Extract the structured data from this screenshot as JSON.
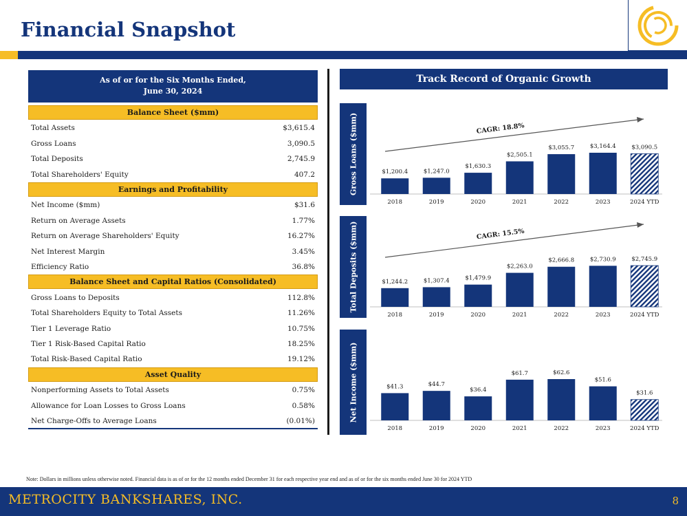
{
  "page": {
    "title": "Financial Snapshot",
    "note": "Note: Dollars in millions unless otherwise noted. Financial data is as of or for the 12 months ended December 31 for each respective year end and as of or for the six months ended June 30 for 2024 YTD",
    "company": "METROCITY BANKSHARES, INC.",
    "page_number": "8"
  },
  "colors": {
    "navy": "#14357a",
    "gold": "#f6bd25"
  },
  "table": {
    "header_line1": "As of or for the Six Months Ended,",
    "header_line2": "June 30, 2024",
    "sections": [
      {
        "title": "Balance Sheet ($mm)",
        "rows": [
          {
            "label": "Total Assets",
            "value": "$3,615.4"
          },
          {
            "label": "Gross Loans",
            "value": "3,090.5"
          },
          {
            "label": "Total Deposits",
            "value": "2,745.9"
          },
          {
            "label": "Total Shareholders' Equity",
            "value": "407.2"
          }
        ]
      },
      {
        "title": "Earnings and Profitability",
        "rows": [
          {
            "label": "Net Income ($mm)",
            "value": "$31.6"
          },
          {
            "label": "Return on Average Assets",
            "value": "1.77%"
          },
          {
            "label": "Return on Average Shareholders' Equity",
            "value": "16.27%"
          },
          {
            "label": "Net Interest Margin",
            "value": "3.45%"
          },
          {
            "label": "Efficiency Ratio",
            "value": "36.8%"
          }
        ]
      },
      {
        "title": "Balance Sheet and Capital Ratios (Consolidated)",
        "rows": [
          {
            "label": "Gross Loans to Deposits",
            "value": "112.8%"
          },
          {
            "label": "Total Shareholders Equity to Total Assets",
            "value": "11.26%"
          },
          {
            "label": "Tier 1 Leverage Ratio",
            "value": "10.75%"
          },
          {
            "label": "Tier 1 Risk-Based Capital Ratio",
            "value": "18.25%"
          },
          {
            "label": "Total Risk-Based Capital Ratio",
            "value": "19.12%"
          }
        ]
      },
      {
        "title": "Asset Quality",
        "rows": [
          {
            "label": "Nonperforming Assets to Total Assets",
            "value": "0.75%"
          },
          {
            "label": "Allowance for Loan Losses to Gross Loans",
            "value": "0.58%"
          },
          {
            "label": "Net Charge-Offs to Average Loans",
            "value": "(0.01%)"
          }
        ]
      }
    ]
  },
  "charts_header": "Track Record of Organic Growth",
  "chart_data": [
    {
      "type": "bar",
      "ylabel": "Gross Loans ($mm)",
      "categories": [
        "2018",
        "2019",
        "2020",
        "2021",
        "2022",
        "2023",
        "2024 YTD"
      ],
      "values": [
        1200.4,
        1247.0,
        1630.3,
        2505.1,
        3055.7,
        3164.4,
        3090.5
      ],
      "data_labels": [
        "$1,200.4",
        "$1,247.0",
        "$1,630.3",
        "$2,505.1",
        "$3,055.7",
        "$3,164.4",
        "$3,090.5"
      ],
      "annotation": "CAGR: 18.8%",
      "hatched_last": true
    },
    {
      "type": "bar",
      "ylabel": "Total Deposits ($mm)",
      "categories": [
        "2018",
        "2019",
        "2020",
        "2021",
        "2022",
        "2023",
        "2024 YTD"
      ],
      "values": [
        1244.2,
        1307.4,
        1479.9,
        2263.0,
        2666.8,
        2730.9,
        2745.9
      ],
      "data_labels": [
        "$1,244.2",
        "$1,307.4",
        "$1,479.9",
        "$2,263.0",
        "$2,666.8",
        "$2,730.9",
        "$2,745.9"
      ],
      "annotation": "CAGR: 15.5%",
      "hatched_last": true
    },
    {
      "type": "bar",
      "ylabel": "Net Income ($mm)",
      "categories": [
        "2018",
        "2019",
        "2020",
        "2021",
        "2022",
        "2023",
        "2024 YTD"
      ],
      "values": [
        41.3,
        44.7,
        36.4,
        61.7,
        62.6,
        51.6,
        31.6
      ],
      "data_labels": [
        "$41.3",
        "$44.7",
        "$36.4",
        "$61.7",
        "$62.6",
        "$51.6",
        "$31.6"
      ],
      "annotation": "",
      "hatched_last": true
    }
  ]
}
